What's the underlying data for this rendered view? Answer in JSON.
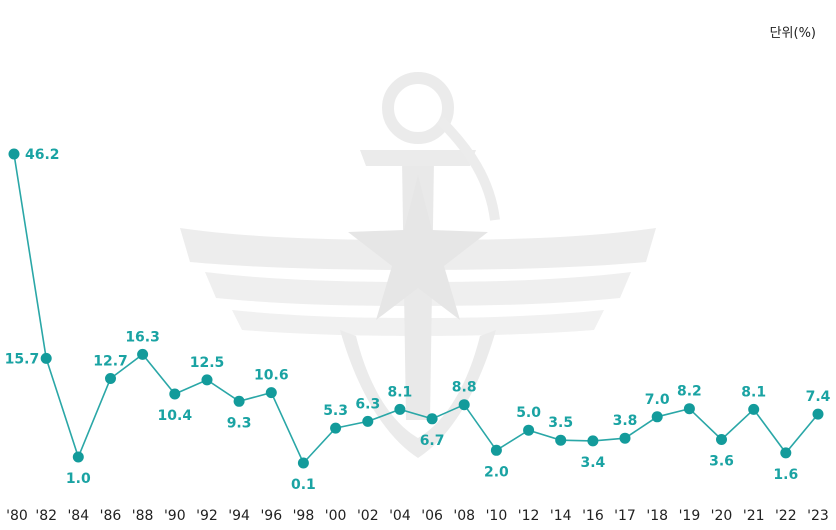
{
  "chart_data": {
    "type": "line",
    "unit_label": "단위(%)",
    "categories": [
      "'80",
      "'82",
      "'84",
      "'86",
      "'88",
      "'90",
      "'92",
      "'94",
      "'96",
      "'98",
      "'00",
      "'02",
      "'04",
      "'06",
      "'08",
      "'10",
      "'12",
      "'14",
      "'16",
      "'17",
      "'18",
      "'19",
      "'20",
      "'21",
      "'22",
      "'23"
    ],
    "series": [
      {
        "values": [
          46.2,
          15.7,
          1.0,
          12.7,
          16.3,
          10.4,
          12.5,
          9.3,
          10.6,
          0.1,
          5.3,
          6.3,
          8.1,
          6.7,
          8.8,
          2.0,
          5.0,
          3.5,
          3.4,
          3.8,
          7.0,
          8.2,
          3.6,
          8.1,
          1.6,
          7.4
        ],
        "value_labels": [
          "46.2",
          "15.7",
          "1.0",
          "12.7",
          "16.3",
          "10.4",
          "12.5",
          "9.3",
          "10.6",
          "0.1",
          "5.3",
          "6.3",
          "8.1",
          "6.7",
          "8.8",
          "2.0",
          "5.0",
          "3.5",
          "3.4",
          "3.8",
          "7.0",
          "8.2",
          "3.6",
          "8.1",
          "1.6",
          "7.4"
        ]
      }
    ],
    "ylim": [
      0,
      50
    ],
    "grid": false,
    "legend": "none",
    "colors": {
      "line": "#2aa7a7",
      "marker": "#139b9b",
      "label": "#1aa3a3",
      "emblem": "#ececec"
    }
  }
}
